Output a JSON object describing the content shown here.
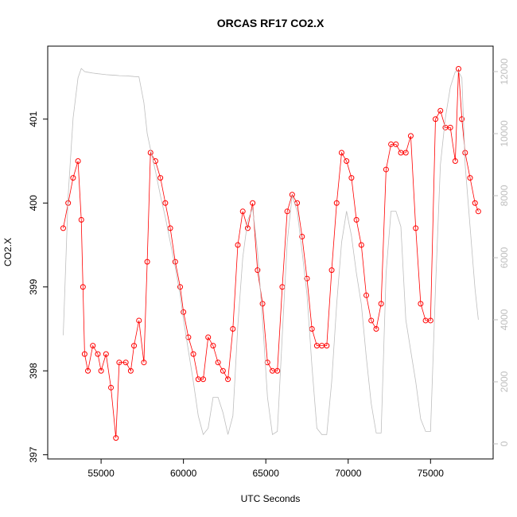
{
  "chart_data": {
    "type": "scatter",
    "title": "ORCAS RF17 CO2.X",
    "x_label": "UTC Seconds",
    "y_label": "CO2.X",
    "x": [
      52700,
      53000,
      53300,
      53600,
      53800,
      53900,
      54000,
      54200,
      54500,
      54800,
      55000,
      55300,
      55600,
      55900,
      56100,
      56500,
      56800,
      57000,
      57300,
      57600,
      57800,
      58000,
      58300,
      58600,
      58900,
      59200,
      59500,
      59800,
      60000,
      60300,
      60600,
      60900,
      61200,
      61500,
      61800,
      62100,
      62400,
      62700,
      63000,
      63300,
      63600,
      63900,
      64200,
      64500,
      64800,
      65100,
      65400,
      65700,
      66000,
      66300,
      66600,
      66900,
      67200,
      67500,
      67800,
      68100,
      68400,
      68700,
      69000,
      69300,
      69600,
      69900,
      70200,
      70500,
      70800,
      71100,
      71400,
      71700,
      72000,
      72300,
      72600,
      72900,
      73200,
      73500,
      73800,
      74100,
      74400,
      74700,
      75000,
      75300,
      75600,
      75900,
      76200,
      76500,
      76700,
      76900,
      77100,
      77400,
      77700,
      77900
    ],
    "series": [
      {
        "color": "#ff0000",
        "values": [
          399.7,
          400.0,
          400.3,
          400.5,
          399.8,
          399.0,
          398.2,
          398.0,
          398.3,
          398.2,
          398.0,
          398.2,
          397.8,
          397.2,
          398.1,
          398.1,
          398.0,
          398.3,
          398.6,
          398.1,
          399.3,
          400.6,
          400.5,
          400.3,
          400.0,
          399.7,
          399.3,
          399.0,
          398.7,
          398.4,
          398.2,
          397.9,
          397.9,
          398.4,
          398.3,
          398.1,
          398.0,
          397.9,
          398.5,
          399.5,
          399.9,
          399.7,
          400.0,
          399.2,
          398.8,
          398.1,
          398.0,
          398.0,
          399.0,
          399.9,
          400.1,
          400.0,
          399.6,
          399.1,
          398.5,
          398.3,
          398.3,
          398.3,
          399.2,
          400.0,
          400.6,
          400.5,
          400.3,
          399.8,
          399.5,
          398.9,
          398.6,
          398.5,
          398.8,
          400.4,
          400.7,
          400.7,
          400.6,
          400.6,
          400.8,
          399.7,
          398.8,
          398.6,
          398.6,
          401.0,
          401.1,
          400.9,
          400.9,
          400.5,
          401.6,
          401.0,
          400.6,
          400.3,
          400.0,
          399.9
        ]
      },
      {
        "color": "#bebebe",
        "axis": "y2",
        "values": [
          3500,
          8000,
          10500,
          11800,
          12100,
          12050,
          12000,
          11980,
          11950,
          11930,
          11920,
          11900,
          11890,
          11880,
          11870,
          11860,
          11850,
          11840,
          11830,
          11000,
          10000,
          9500,
          8800,
          8000,
          7300,
          6500,
          5700,
          4800,
          4000,
          3000,
          2000,
          900,
          300,
          500,
          1500,
          1500,
          1000,
          300,
          900,
          3800,
          6000,
          7200,
          7600,
          6200,
          4000,
          1500,
          300,
          400,
          3500,
          6500,
          8000,
          7500,
          6200,
          4800,
          2500,
          500,
          300,
          300,
          2000,
          4500,
          6500,
          7500,
          6700,
          5500,
          4500,
          2800,
          1300,
          350,
          350,
          5500,
          7500,
          7500,
          7000,
          4000,
          3000,
          2000,
          800,
          400,
          400,
          5000,
          9000,
          10500,
          11500,
          12000,
          12000,
          11800,
          9000,
          7000,
          5000,
          4000
        ]
      }
    ],
    "xlim": [
      51760,
      78800
    ],
    "xticks": [
      55000,
      60000,
      65000,
      70000,
      75000
    ],
    "ylim": [
      396.95,
      401.87
    ],
    "yticks": [
      397,
      398,
      399,
      400,
      401
    ],
    "y2lim": [
      -487,
      12820
    ],
    "y2ticks": [
      0,
      2000,
      4000,
      6000,
      8000,
      10000,
      12000
    ]
  }
}
